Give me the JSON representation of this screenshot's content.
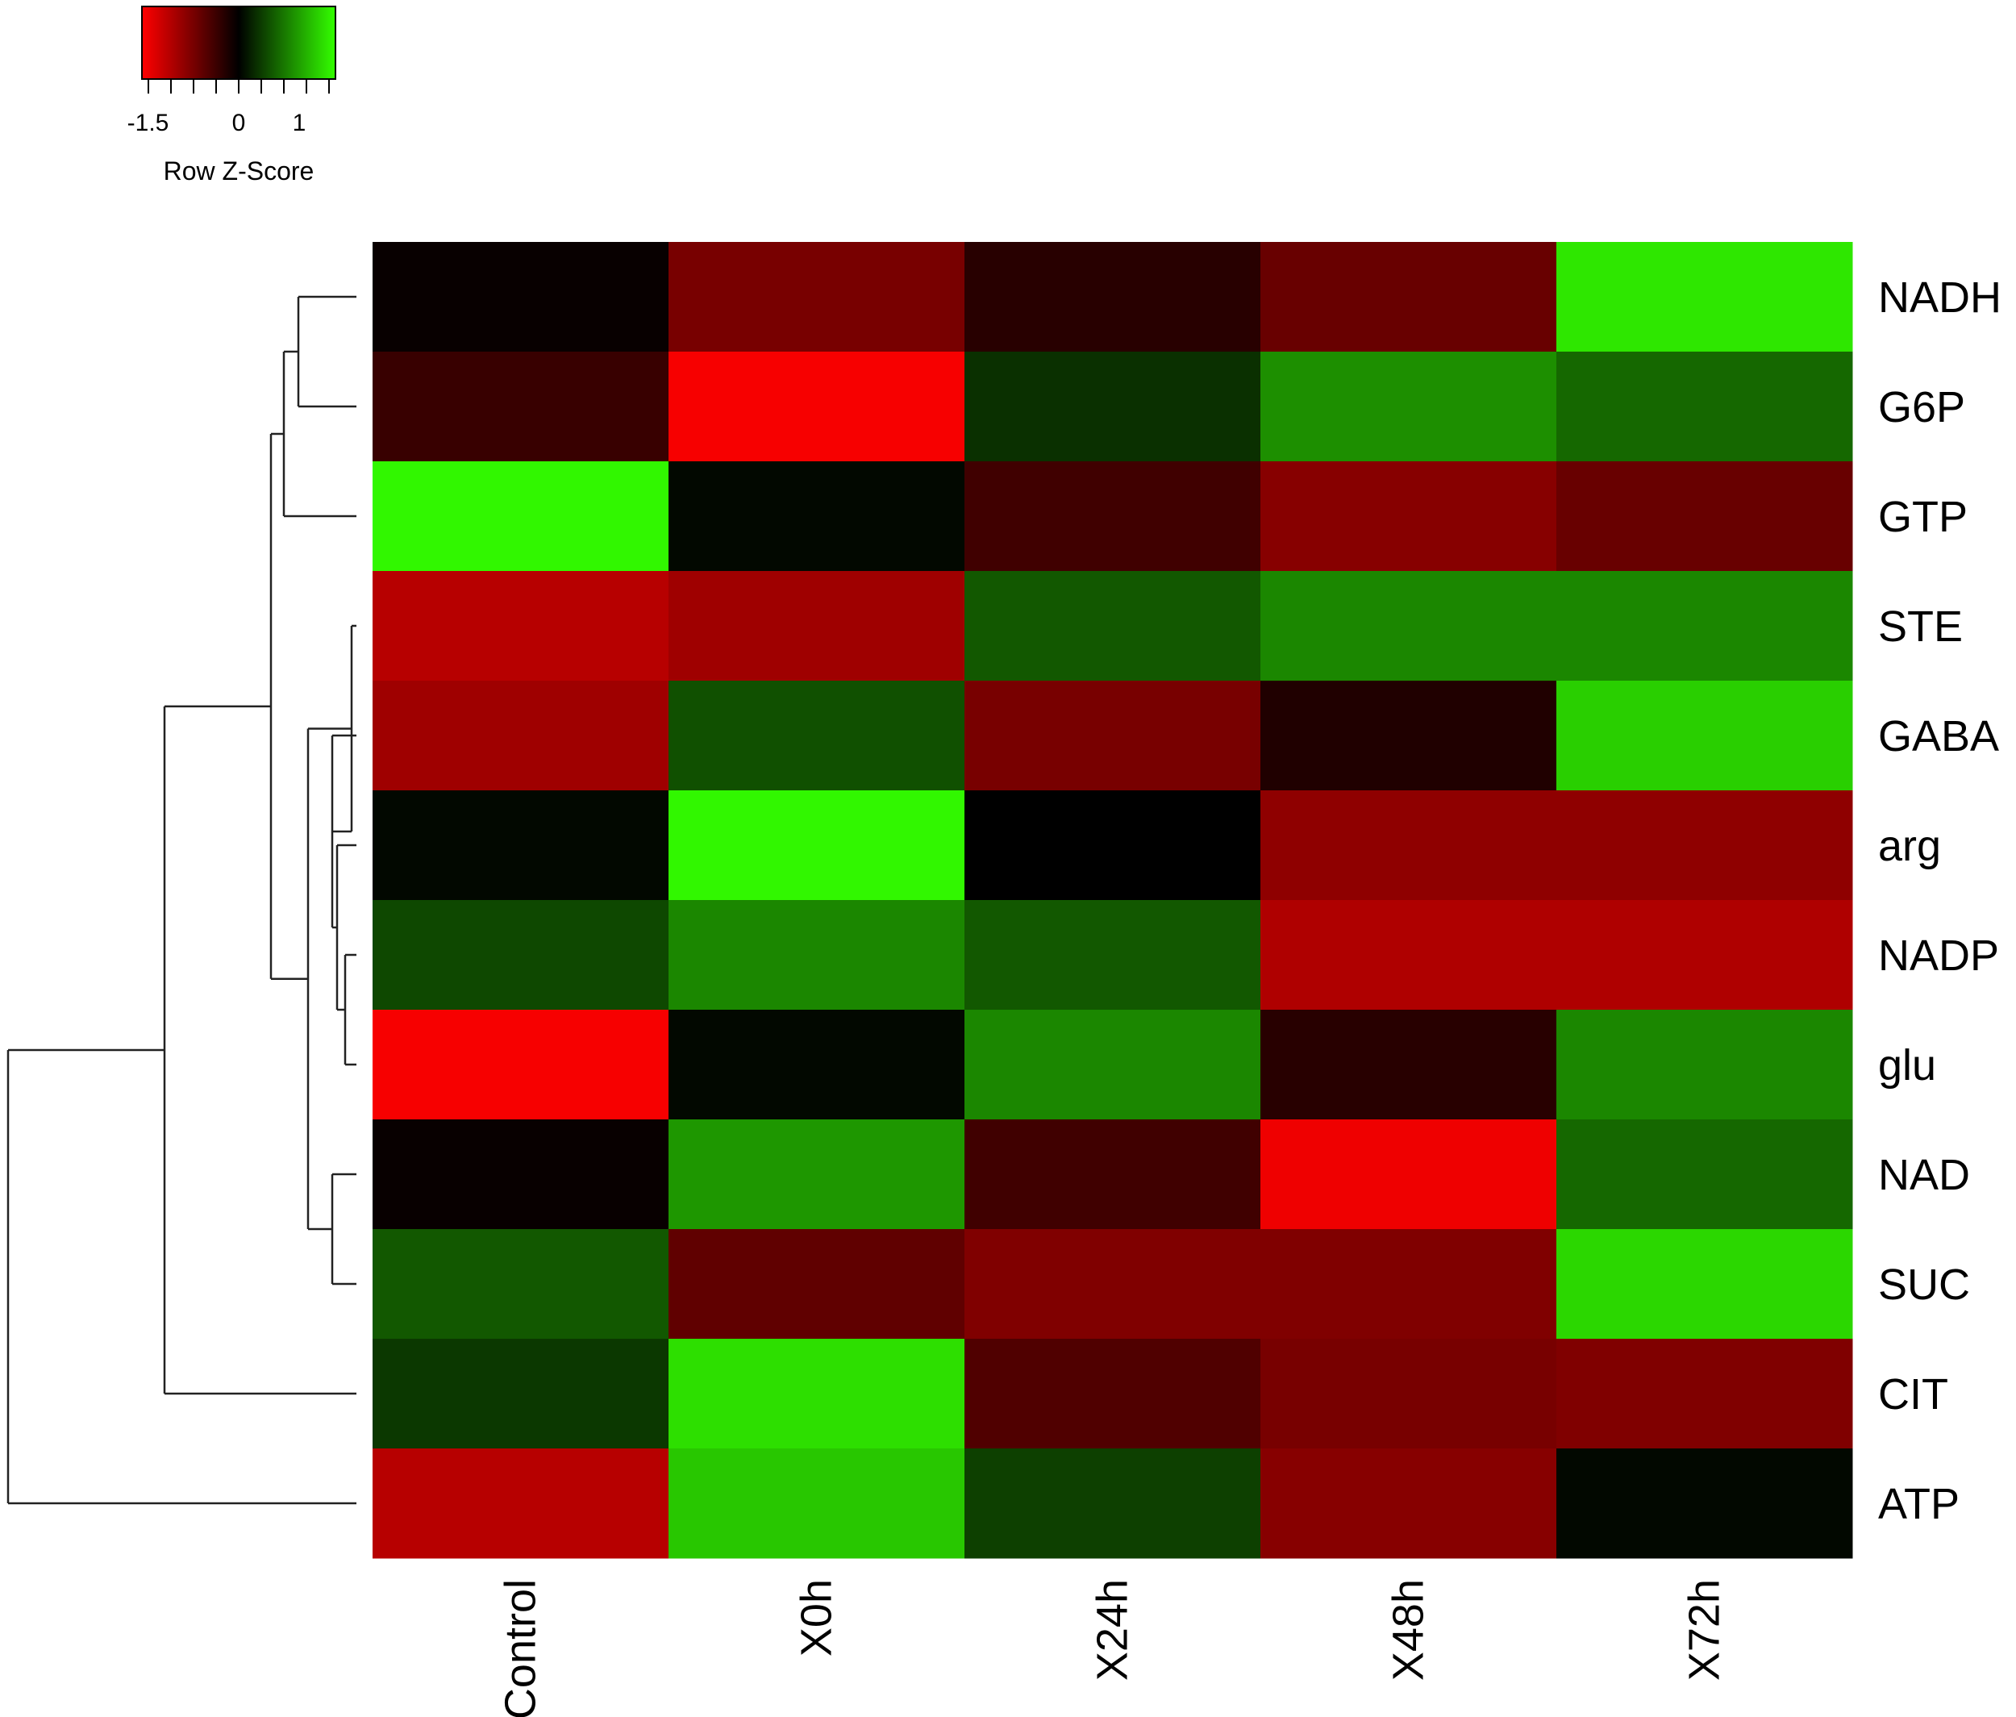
{
  "chart_data": {
    "type": "heatmap",
    "columns": [
      "Control",
      "X0h",
      "X24h",
      "X48h",
      "X72h"
    ],
    "rows": [
      "NADH",
      "G6P",
      "GTP",
      "STE",
      "GABA",
      "arg",
      "NADP",
      "glu",
      "NAD",
      "SUC",
      "CIT",
      "ATP"
    ],
    "values": [
      [
        -0.05,
        -0.75,
        -0.25,
        -0.65,
        1.45
      ],
      [
        -0.35,
        -1.55,
        0.3,
        0.9,
        0.65
      ],
      [
        1.55,
        0.05,
        -0.4,
        -0.85,
        -0.65
      ],
      [
        -1.15,
        -1.0,
        0.55,
        0.85,
        0.85
      ],
      [
        -1.0,
        0.5,
        -0.75,
        -0.2,
        1.3
      ],
      [
        0.05,
        1.55,
        0.0,
        -0.9,
        -0.9
      ],
      [
        0.45,
        0.85,
        0.55,
        -1.1,
        -1.1
      ],
      [
        -1.55,
        0.05,
        0.85,
        -0.25,
        0.85
      ],
      [
        -0.05,
        0.95,
        -0.4,
        -1.5,
        0.65
      ],
      [
        0.55,
        -0.6,
        -0.8,
        -0.8,
        1.35
      ],
      [
        0.35,
        1.4,
        -0.5,
        -0.75,
        -0.8
      ],
      [
        -1.15,
        1.25,
        0.4,
        -0.85,
        0.05
      ]
    ],
    "color_scale": {
      "low_color": "#ff0000",
      "mid_color": "#000000",
      "high_color": "#33ff00",
      "min": -1.6,
      "max": 1.6
    },
    "key": {
      "title": "Row Z-Score",
      "ticks": [
        -1.5,
        0,
        1
      ],
      "tick_labels": [
        "-1.5",
        "0",
        "1"
      ]
    },
    "row_dendrogram": true
  }
}
